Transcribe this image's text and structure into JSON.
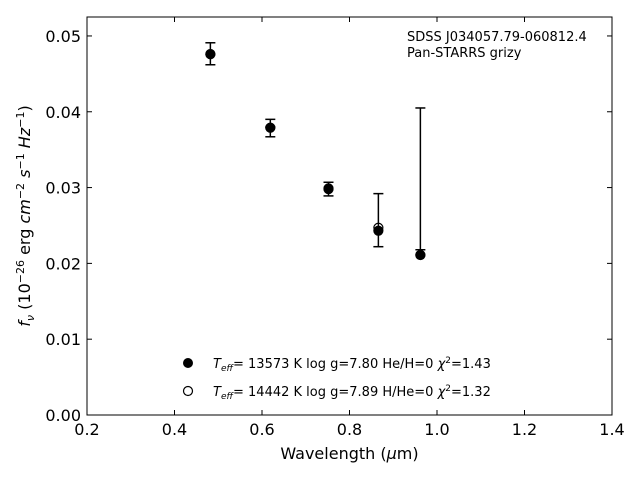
{
  "chart_data": {
    "type": "scatter",
    "title": "",
    "xlabel": "Wavelength (μm)",
    "ylabel": "f_ν (10^−26 erg cm^−2 s^−1 Hz^−1)",
    "xlim": [
      0.2,
      1.4
    ],
    "ylim": [
      0.0,
      0.0525
    ],
    "xticks": [
      0.2,
      0.4,
      0.6,
      0.8,
      1.0,
      1.2,
      1.4
    ],
    "xtick_labels": [
      "0.2",
      "0.4",
      "0.6",
      "0.8",
      "1.0",
      "1.2",
      "1.4"
    ],
    "yticks": [
      0.0,
      0.01,
      0.02,
      0.03,
      0.04,
      0.05
    ],
    "ytick_labels": [
      "0.00",
      "0.01",
      "0.02",
      "0.03",
      "0.04",
      "0.05"
    ],
    "grid": false,
    "annotations": [
      "SDSS J034057.79-060812.4",
      "Pan-STARRS grizy"
    ],
    "observed": {
      "x": [
        0.482,
        0.619,
        0.752,
        0.866,
        0.962
      ],
      "y_err_low": [
        0.0462,
        0.0367,
        0.0289,
        0.0222,
        0.0218
      ],
      "y_err_high": [
        0.0491,
        0.039,
        0.0307,
        0.0292,
        0.0405
      ]
    },
    "series": [
      {
        "label": "T_eff= 13573 K  log g=7.80  He/H=0  χ²=1.43",
        "marker": "filled-circle",
        "x": [
          0.482,
          0.619,
          0.752,
          0.866,
          0.962
        ],
        "y": [
          0.0476,
          0.0379,
          0.0299,
          0.0243,
          0.0211
        ]
      },
      {
        "label": "T_eff= 14442 K  log g=7.89  H/He=0  χ²=1.32",
        "marker": "open-circle",
        "x": [
          0.482,
          0.619,
          0.752,
          0.866,
          0.962
        ],
        "y": [
          0.0476,
          0.0379,
          0.0298,
          0.0247,
          0.0211
        ]
      }
    ],
    "legend_position": "bottom-center",
    "colors": {
      "marker": "#000000",
      "axes": "#000000",
      "background": "#ffffff"
    }
  }
}
